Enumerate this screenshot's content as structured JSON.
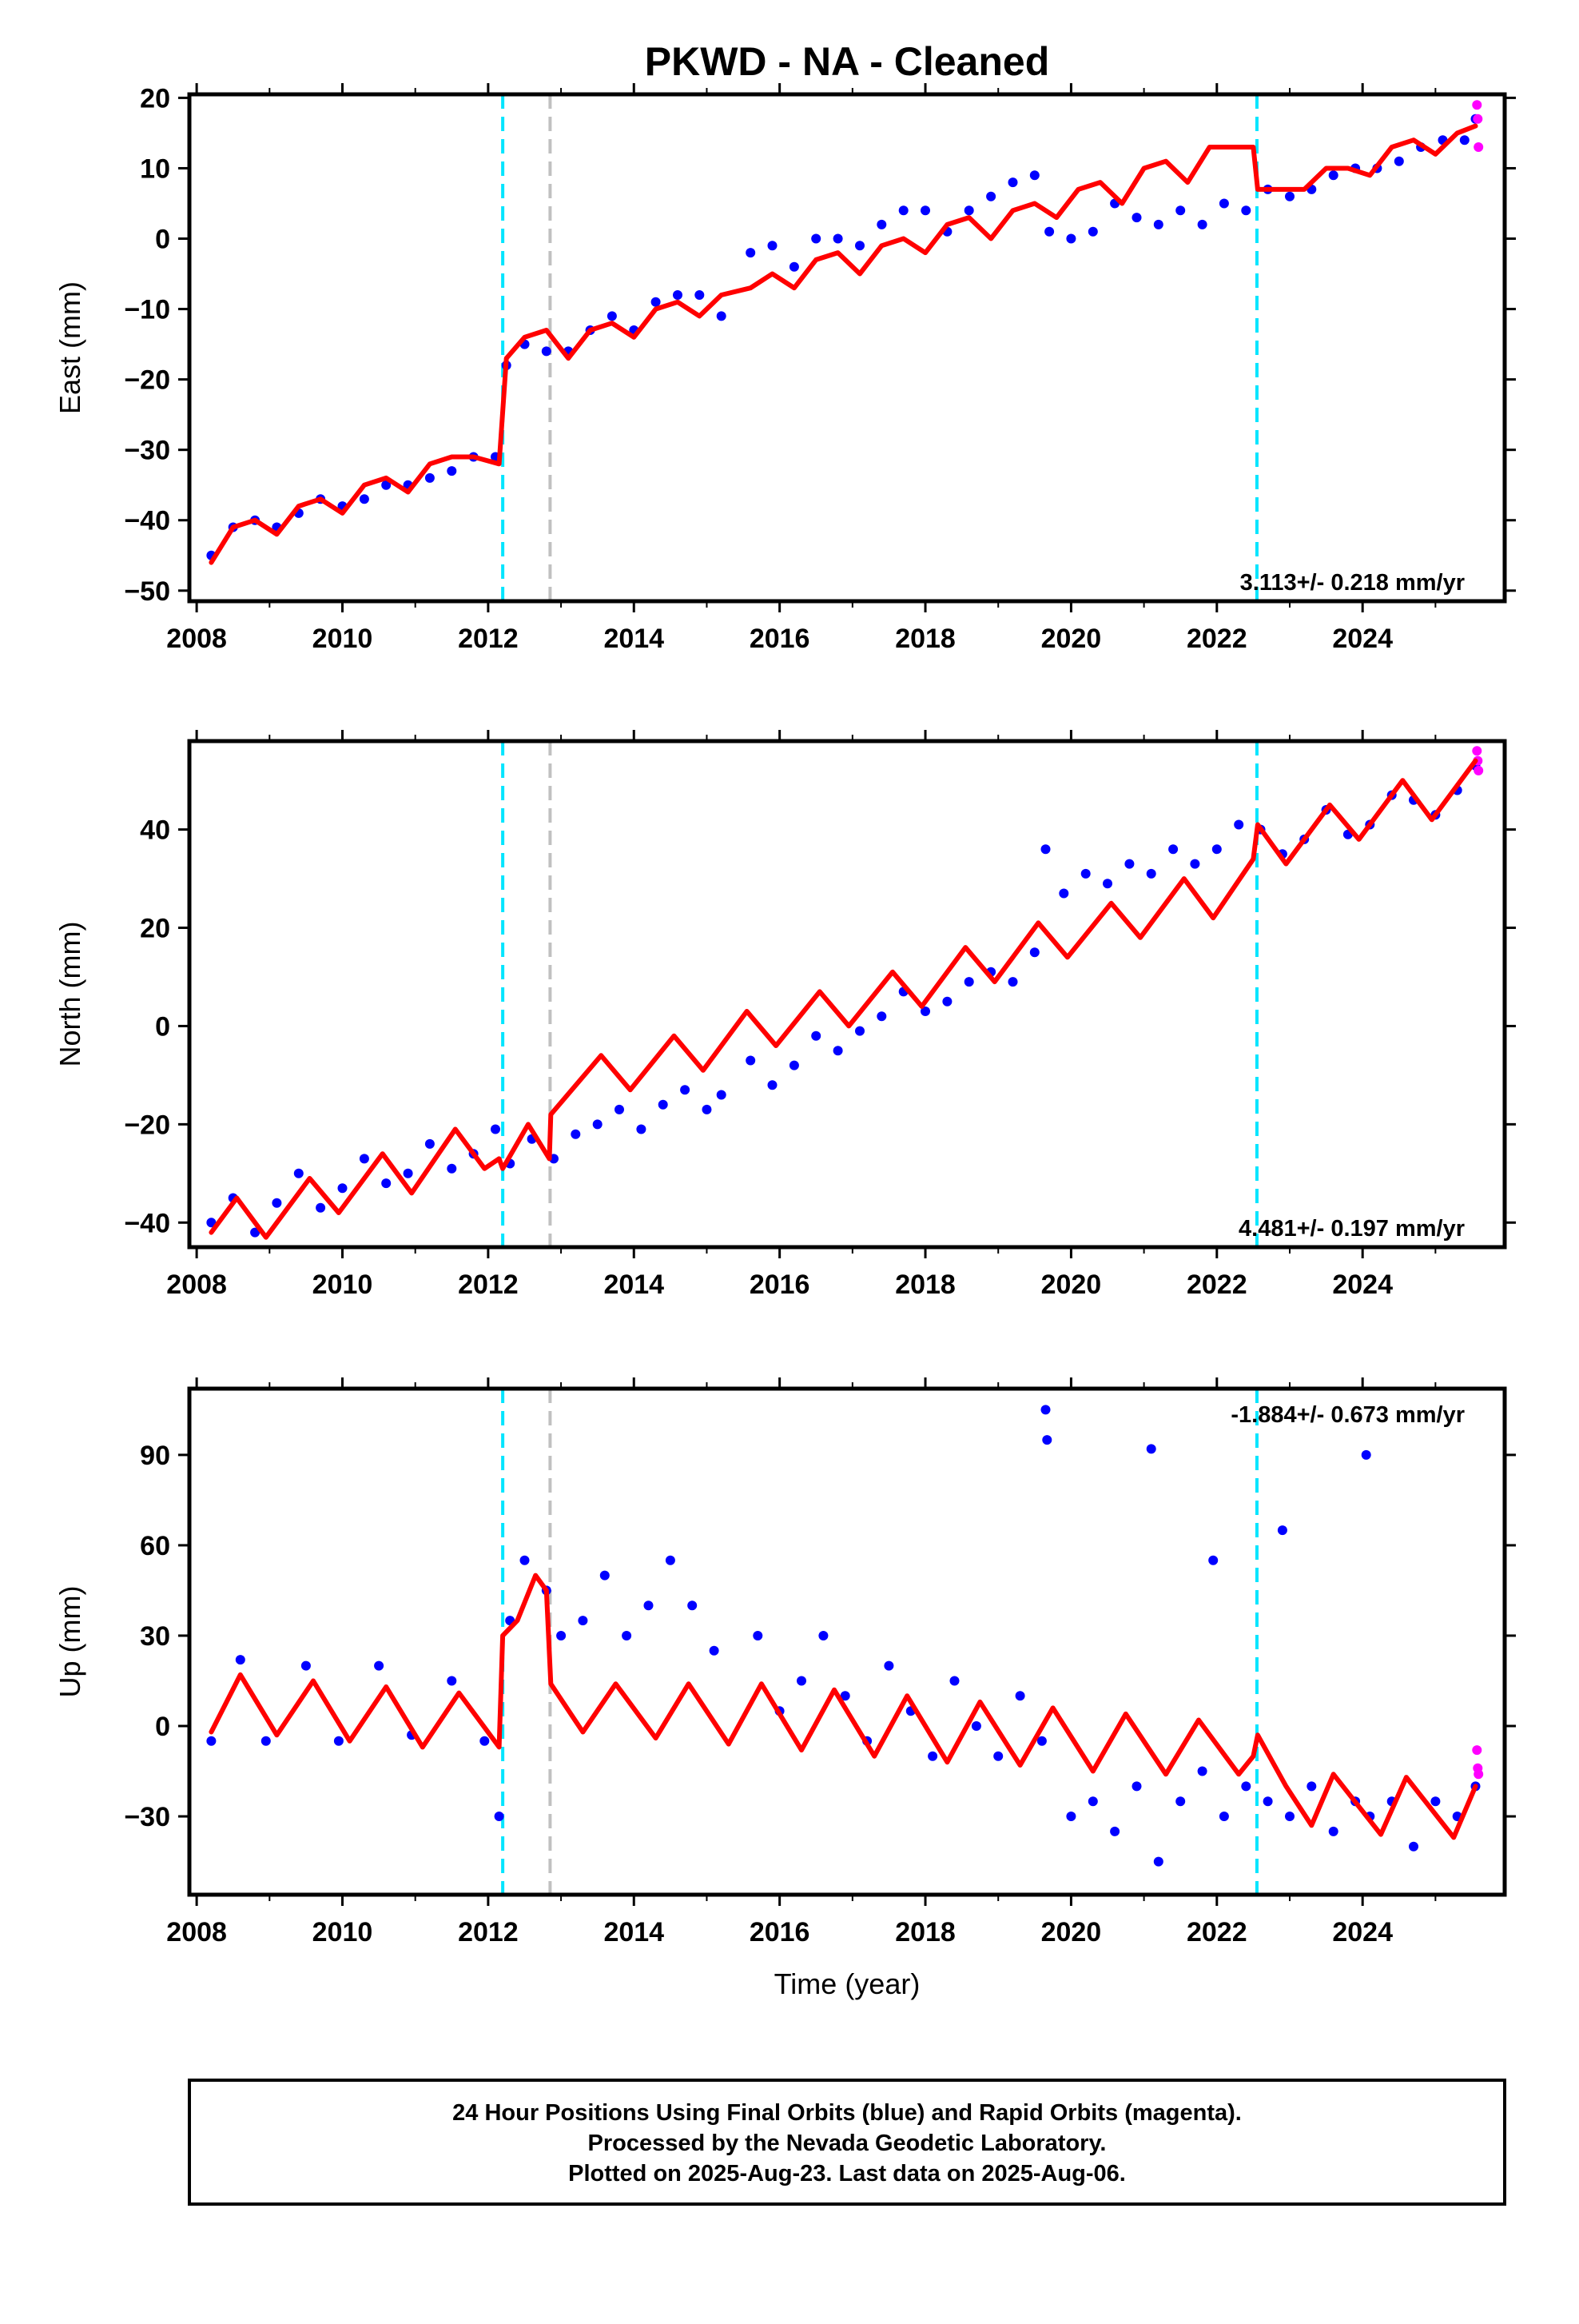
{
  "title": "PKWD  - NA - Cleaned",
  "xlabel": "Time (year)",
  "footer": {
    "line1": "24 Hour Positions Using Final Orbits (blue) and Rapid Orbits (magenta).",
    "line2": "Processed by the Nevada Geodetic Laboratory.",
    "line3": "Plotted on 2025-Aug-23. Last data on 2025-Aug-06."
  },
  "colors": {
    "final_orbits": "#0000ff",
    "rapid_orbits": "#ff00ff",
    "model": "#ff0000",
    "equipment_change": "#00e5ff",
    "earthquake": "#c0c0c0"
  },
  "chart_data": [
    {
      "type": "scatter",
      "ylabel": "East (mm)",
      "rate": "3.113+/- 0.218 mm/yr",
      "xlim": [
        2007.9,
        2025.95
      ],
      "ylim": [
        -51.5,
        20.5
      ],
      "xticks": [
        "2008",
        "2010",
        "2012",
        "2014",
        "2016",
        "2018",
        "2020",
        "2022",
        "2024"
      ],
      "yticks": [
        "20",
        "10",
        "0",
        "-10",
        "-20",
        "-30",
        "-40",
        "-50"
      ],
      "vlines_cyan": [
        2012.2,
        2022.55
      ],
      "vlines_gray": [
        2012.85
      ],
      "series": [
        {
          "color": "blue",
          "x": [
            2008.2,
            2008.5,
            2008.8,
            2009.1,
            2009.4,
            2009.7,
            2010.0,
            2010.3,
            2010.6,
            2010.9,
            2011.2,
            2011.5,
            2011.8,
            2012.1,
            2012.25,
            2012.5,
            2012.8,
            2013.1,
            2013.4,
            2013.7,
            2014.0,
            2014.3,
            2014.6,
            2014.9,
            2015.2,
            2015.6,
            2015.9,
            2016.2,
            2016.5,
            2016.8,
            2017.1,
            2017.4,
            2017.7,
            2018.0,
            2018.3,
            2018.6,
            2018.9,
            2019.2,
            2019.5,
            2019.7,
            2020.0,
            2020.3,
            2020.6,
            2020.9,
            2021.2,
            2021.5,
            2021.8,
            2022.1,
            2022.4,
            2022.7,
            2023.0,
            2023.3,
            2023.6,
            2023.9,
            2024.2,
            2024.5,
            2024.8,
            2025.1,
            2025.4,
            2025.55
          ],
          "y": [
            -45,
            -41,
            -40,
            -41,
            -39,
            -37,
            -38,
            -37,
            -35,
            -35,
            -34,
            -33,
            -31,
            -31,
            -18,
            -15,
            -16,
            -16,
            -13,
            -11,
            -13,
            -9,
            -8,
            -8,
            -11,
            -2,
            -1,
            -4,
            0,
            0,
            -1,
            2,
            4,
            4,
            1,
            4,
            6,
            8,
            9,
            1,
            0,
            1,
            5,
            3,
            2,
            4,
            2,
            5,
            4,
            7,
            6,
            7,
            9,
            10,
            10,
            11,
            13,
            14,
            14,
            17
          ]
        },
        {
          "color": "magenta",
          "x": [
            2025.57,
            2025.58,
            2025.59
          ],
          "y": [
            19,
            17,
            13
          ]
        },
        {
          "color": "red",
          "x": [
            2008.2,
            2008.5,
            2008.8,
            2009.1,
            2009.4,
            2009.7,
            2010.0,
            2010.3,
            2010.6,
            2010.9,
            2011.2,
            2011.5,
            2011.8,
            2012.15,
            2012.25,
            2012.5,
            2012.8,
            2013.1,
            2013.4,
            2013.7,
            2014.0,
            2014.3,
            2014.6,
            2014.9,
            2015.2,
            2015.6,
            2015.9,
            2016.2,
            2016.5,
            2016.8,
            2017.1,
            2017.4,
            2017.7,
            2018.0,
            2018.3,
            2018.6,
            2018.9,
            2019.2,
            2019.5,
            2019.8,
            2020.1,
            2020.4,
            2020.7,
            2021.0,
            2021.3,
            2021.6,
            2021.9,
            2022.2,
            2022.5,
            2022.56,
            2022.9,
            2023.2,
            2023.5,
            2023.8,
            2024.1,
            2024.4,
            2024.7,
            2025.0,
            2025.3,
            2025.55
          ],
          "y": [
            -46,
            -41,
            -40,
            -42,
            -38,
            -37,
            -39,
            -35,
            -34,
            -36,
            -32,
            -31,
            -31,
            -32,
            -17,
            -14,
            -13,
            -17,
            -13,
            -12,
            -14,
            -10,
            -9,
            -11,
            -8,
            -7,
            -5,
            -7,
            -3,
            -2,
            -5,
            -1,
            0,
            -2,
            2,
            3,
            0,
            4,
            5,
            3,
            7,
            8,
            5,
            10,
            11,
            8,
            13,
            13,
            13,
            7,
            7,
            7,
            10,
            10,
            9,
            13,
            14,
            12,
            15,
            16
          ]
        }
      ]
    },
    {
      "type": "scatter",
      "ylabel": "North (mm)",
      "rate": "4.481+/- 0.197 mm/yr",
      "xlim": [
        2007.9,
        2025.95
      ],
      "ylim": [
        -45,
        58
      ],
      "xticks": [
        "2008",
        "2010",
        "2012",
        "2014",
        "2016",
        "2018",
        "2020",
        "2022",
        "2024"
      ],
      "yticks": [
        "40",
        "20",
        "0",
        "-20",
        "-40"
      ],
      "vlines_cyan": [
        2012.2,
        2022.55
      ],
      "vlines_gray": [
        2012.85
      ],
      "series": [
        {
          "color": "blue",
          "x": [
            2008.2,
            2008.5,
            2008.8,
            2009.1,
            2009.4,
            2009.7,
            2010.0,
            2010.3,
            2010.6,
            2010.9,
            2011.2,
            2011.5,
            2011.8,
            2012.1,
            2012.3,
            2012.6,
            2012.9,
            2013.2,
            2013.5,
            2013.8,
            2014.1,
            2014.4,
            2014.7,
            2015.0,
            2015.2,
            2015.6,
            2015.9,
            2016.2,
            2016.5,
            2016.8,
            2017.1,
            2017.4,
            2017.7,
            2018.0,
            2018.3,
            2018.6,
            2018.9,
            2019.2,
            2019.5,
            2019.65,
            2019.9,
            2020.2,
            2020.5,
            2020.8,
            2021.1,
            2021.4,
            2021.7,
            2022.0,
            2022.3,
            2022.6,
            2022.9,
            2023.2,
            2023.5,
            2023.8,
            2024.1,
            2024.4,
            2024.7,
            2025.0,
            2025.3,
            2025.55
          ],
          "y": [
            -40,
            -35,
            -42,
            -36,
            -30,
            -37,
            -33,
            -27,
            -32,
            -30,
            -24,
            -29,
            -26,
            -21,
            -28,
            -23,
            -27,
            -22,
            -20,
            -17,
            -21,
            -16,
            -13,
            -17,
            -14,
            -7,
            -12,
            -8,
            -2,
            -5,
            -1,
            2,
            7,
            3,
            5,
            9,
            11,
            9,
            15,
            36,
            27,
            31,
            29,
            33,
            31,
            36,
            33,
            36,
            41,
            40,
            35,
            38,
            44,
            39,
            41,
            47,
            46,
            43,
            48,
            53
          ]
        },
        {
          "color": "magenta",
          "x": [
            2025.57,
            2025.58,
            2025.59
          ],
          "y": [
            56,
            54,
            52
          ]
        },
        {
          "color": "red",
          "x": [
            2008.2,
            2008.55,
            2008.95,
            2009.55,
            2009.95,
            2010.55,
            2010.95,
            2011.55,
            2011.95,
            2012.15,
            2012.2,
            2012.55,
            2012.84,
            2012.86,
            2013.55,
            2013.95,
            2014.55,
            2014.95,
            2015.55,
            2015.95,
            2016.55,
            2016.95,
            2017.55,
            2017.95,
            2018.55,
            2018.95,
            2019.55,
            2019.95,
            2020.55,
            2020.95,
            2021.55,
            2021.95,
            2022.5,
            2022.56,
            2022.95,
            2023.55,
            2023.95,
            2024.55,
            2024.95,
            2025.55
          ],
          "y": [
            -42,
            -35,
            -43,
            -31,
            -38,
            -26,
            -34,
            -21,
            -29,
            -27,
            -29,
            -20,
            -27,
            -18,
            -6,
            -13,
            -2,
            -9,
            3,
            -4,
            7,
            0,
            11,
            4,
            16,
            9,
            21,
            14,
            25,
            18,
            30,
            22,
            34,
            41,
            33,
            45,
            38,
            50,
            42,
            54
          ]
        }
      ]
    },
    {
      "type": "scatter",
      "ylabel": "Up (mm)",
      "rate": "-1.884+/- 0.673 mm/yr",
      "xlim": [
        2007.9,
        2025.95
      ],
      "ylim": [
        -56,
        112
      ],
      "xticks": [
        "2008",
        "2010",
        "2012",
        "2014",
        "2016",
        "2018",
        "2020",
        "2022",
        "2024"
      ],
      "yticks": [
        "90",
        "60",
        "30",
        "0",
        "-30"
      ],
      "vlines_cyan": [
        2012.2,
        2022.55
      ],
      "vlines_gray": [
        2012.85
      ],
      "series": [
        {
          "color": "blue",
          "x": [
            2008.2,
            2008.6,
            2008.95,
            2009.5,
            2009.95,
            2010.5,
            2010.95,
            2011.5,
            2011.95,
            2012.15,
            2012.3,
            2012.5,
            2012.8,
            2013.0,
            2013.3,
            2013.6,
            2013.9,
            2014.2,
            2014.5,
            2014.8,
            2015.1,
            2015.7,
            2016.0,
            2016.3,
            2016.6,
            2016.9,
            2017.2,
            2017.5,
            2017.8,
            2018.1,
            2018.4,
            2018.7,
            2019.0,
            2019.3,
            2019.6,
            2019.65,
            2019.67,
            2020.0,
            2020.3,
            2020.6,
            2020.9,
            2021.1,
            2021.2,
            2021.5,
            2021.8,
            2021.95,
            2022.1,
            2022.4,
            2022.7,
            2022.9,
            2023.0,
            2023.3,
            2023.6,
            2023.9,
            2024.05,
            2024.1,
            2024.4,
            2024.7,
            2025.0,
            2025.3,
            2025.55
          ],
          "y": [
            -5,
            22,
            -5,
            20,
            -5,
            20,
            -3,
            15,
            -5,
            -30,
            35,
            55,
            45,
            30,
            35,
            50,
            30,
            40,
            55,
            40,
            25,
            30,
            5,
            15,
            30,
            10,
            -5,
            20,
            5,
            -10,
            15,
            0,
            -10,
            10,
            -5,
            105,
            95,
            -30,
            -25,
            -35,
            -20,
            92,
            -45,
            -25,
            -15,
            55,
            -30,
            -20,
            -25,
            65,
            -30,
            -20,
            -35,
            -25,
            90,
            -30,
            -25,
            -40,
            -25,
            -30,
            -20
          ]
        },
        {
          "color": "magenta",
          "x": [
            2025.57,
            2025.58,
            2025.59
          ],
          "y": [
            -8,
            -14,
            -16
          ]
        },
        {
          "color": "red",
          "x": [
            2008.2,
            2008.6,
            2009.1,
            2009.6,
            2010.1,
            2010.6,
            2011.1,
            2011.6,
            2012.15,
            2012.2,
            2012.4,
            2012.65,
            2012.8,
            2012.86,
            2013.3,
            2013.75,
            2014.3,
            2014.75,
            2015.3,
            2015.75,
            2016.3,
            2016.75,
            2017.3,
            2017.75,
            2018.3,
            2018.75,
            2019.3,
            2019.75,
            2020.3,
            2020.75,
            2021.3,
            2021.75,
            2022.3,
            2022.5,
            2022.56,
            2022.95,
            2023.3,
            2023.6,
            2024.25,
            2024.6,
            2025.25,
            2025.55
          ],
          "y": [
            -2,
            17,
            -3,
            15,
            -5,
            13,
            -7,
            11,
            -7,
            30,
            35,
            50,
            45,
            14,
            -2,
            14,
            -4,
            14,
            -6,
            14,
            -8,
            12,
            -10,
            10,
            -12,
            8,
            -13,
            6,
            -15,
            4,
            -16,
            2,
            -16,
            -10,
            -3,
            -20,
            -33,
            -16,
            -36,
            -17,
            -37,
            -20
          ]
        }
      ]
    }
  ]
}
